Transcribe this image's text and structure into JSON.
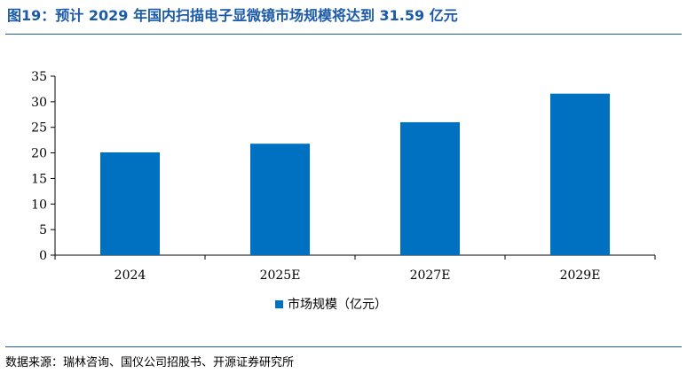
{
  "figure": {
    "title": "图19：预计 2029 年国内扫描电子显微镜市场规模将达到 31.59 亿元",
    "source": "数据来源：瑞林咨询、国仪公司招股书、开源证券研究所"
  },
  "colors": {
    "accent": "#1a5aa8",
    "bar": "#0070c0",
    "axis": "#000000"
  },
  "chart_data": {
    "type": "bar",
    "categories": [
      "2024",
      "2025E",
      "2027E",
      "2029E"
    ],
    "series": [
      {
        "name": "市场规模（亿元）",
        "values": [
          20.1,
          21.8,
          26.0,
          31.59
        ]
      }
    ],
    "ylim": [
      0,
      35
    ],
    "yticks": [
      "0",
      "5",
      "10",
      "15",
      "20",
      "25",
      "30",
      "35"
    ],
    "xlabel": "",
    "ylabel": "",
    "grid": false,
    "legend_position": "bottom-center"
  }
}
